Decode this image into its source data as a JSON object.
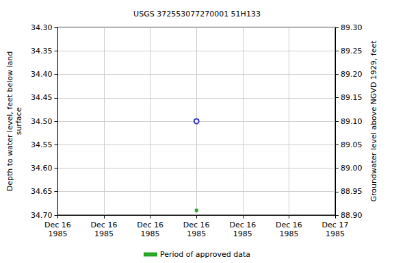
{
  "chart_data": {
    "type": "scatter",
    "title": "USGS 372553077270001 51H133",
    "y_label": "Depth to water level, feet below land\nsurface",
    "y2_label": "Groundwater level above NGVD 1929, feet",
    "categories": [
      "Dec 16\n1985",
      "Dec 16\n1985",
      "Dec 16\n1985",
      "Dec 16\n1985",
      "Dec 16\n1985",
      "Dec 16\n1985",
      "Dec 17\n1985"
    ],
    "series": [
      {
        "type": "scatter",
        "color": "#0000cc",
        "marker": "circle_open",
        "values": [
          null,
          null,
          null,
          34.5,
          null,
          null,
          null
        ]
      },
      {
        "name": "Period of approved data",
        "type": "scatter",
        "color": "#009900",
        "marker": "square",
        "values": [
          null,
          null,
          null,
          34.69,
          null,
          null,
          null
        ]
      }
    ],
    "ylim": [
      34.7,
      34.3
    ],
    "yticks": [
      {
        "value": 34.3,
        "label": "34.30"
      },
      {
        "value": 34.35,
        "label": "34.35"
      },
      {
        "value": 34.4,
        "label": "34.40"
      },
      {
        "value": 34.45,
        "label": "34.45"
      },
      {
        "value": 34.5,
        "label": "34.50"
      },
      {
        "value": 34.55,
        "label": "34.55"
      },
      {
        "value": 34.6,
        "label": "34.60"
      },
      {
        "value": 34.65,
        "label": "34.65"
      },
      {
        "value": 34.7,
        "label": "34.70"
      }
    ],
    "y2lim": [
      88.9,
      89.3
    ],
    "y2ticks": [
      {
        "value": 88.9,
        "label": "88.90"
      },
      {
        "value": 88.95,
        "label": "88.95"
      },
      {
        "value": 89.0,
        "label": "89.00"
      },
      {
        "value": 89.05,
        "label": "89.05"
      },
      {
        "value": 89.1,
        "label": "89.10"
      },
      {
        "value": 89.15,
        "label": "89.15"
      },
      {
        "value": 89.2,
        "label": "89.20"
      },
      {
        "value": 89.25,
        "label": "89.25"
      },
      {
        "value": 89.3,
        "label": "89.30"
      }
    ],
    "grid": true,
    "legend": "bottom"
  }
}
